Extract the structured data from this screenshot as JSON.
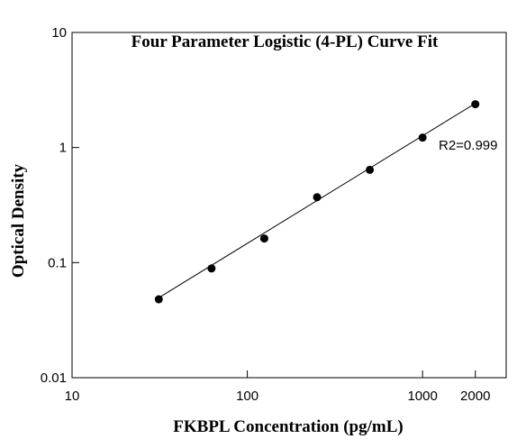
{
  "chart_data": {
    "type": "scatter",
    "title": "Four Parameter Logistic (4-PL) Curve Fit",
    "xlabel": "FKBPL  Concentration (pg/mL)",
    "ylabel": "Optical Density",
    "x_scale": "log",
    "y_scale": "log",
    "xlim": [
      10,
      3000
    ],
    "ylim": [
      0.01,
      10
    ],
    "x_ticks": [
      {
        "value": 10,
        "label": "10"
      },
      {
        "value": 100,
        "label": "100"
      },
      {
        "value": 1000,
        "label": "1000"
      },
      {
        "value": 2000,
        "label": "2000"
      }
    ],
    "y_ticks": [
      {
        "value": 10,
        "label": "10"
      },
      {
        "value": 1,
        "label": "1"
      },
      {
        "value": 0.1,
        "label": "0.1"
      },
      {
        "value": 0.01,
        "label": "0.01"
      }
    ],
    "series": [
      {
        "x": [
          31.25,
          62.5,
          125,
          250,
          500,
          1000,
          2000
        ],
        "y": [
          0.048,
          0.089,
          0.162,
          0.37,
          0.64,
          1.22,
          2.38
        ]
      }
    ],
    "fit_curve": {
      "type": "4-PL",
      "x": [
        31.25,
        2000
      ],
      "y": [
        0.0495,
        2.42
      ]
    },
    "annotation": "R2=0.999",
    "grid": false,
    "legend": "none",
    "colors": {
      "points": "#000000",
      "line": "#000000",
      "axis": "#000000"
    }
  }
}
